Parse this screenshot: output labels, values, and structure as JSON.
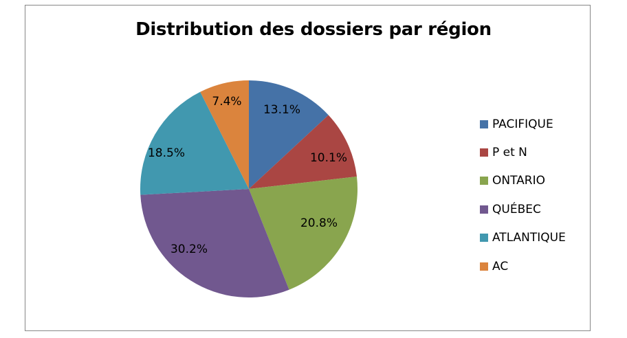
{
  "chart_data": {
    "type": "pie",
    "title": "Distribution des dossiers par région",
    "categories": [
      "PACIFIQUE",
      "P et N",
      "ONTARIO",
      "QUÉBEC",
      "ATLANTIQUE",
      "AC"
    ],
    "values": [
      13.1,
      10.1,
      20.8,
      30.2,
      18.5,
      7.4
    ],
    "labels": [
      "13.1%",
      "10.1%",
      "20.8%",
      "30.2%",
      "18.5%",
      "7.4%"
    ],
    "colors": [
      "#4572A7",
      "#AA4643",
      "#89A54E",
      "#71588F",
      "#4198AF",
      "#DB843D"
    ],
    "legend_position": "right",
    "start_angle": "12 o'clock, clockwise"
  },
  "legend": {
    "items": [
      {
        "label": "PACIFIQUE",
        "color": "#4572A7"
      },
      {
        "label": "P et N",
        "color": "#AA4643"
      },
      {
        "label": "ONTARIO",
        "color": "#89A54E"
      },
      {
        "label": "QUÉBEC",
        "color": "#71588F"
      },
      {
        "label": "ATLANTIQUE",
        "color": "#4198AF"
      },
      {
        "label": "AC",
        "color": "#DB843D"
      }
    ]
  }
}
